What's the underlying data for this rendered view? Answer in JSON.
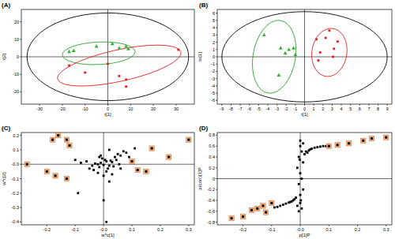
{
  "chart_data": [
    {
      "type": "scatter",
      "title": "(A)",
      "x_label": "t[1]",
      "y_label": "t[2]",
      "xlim": [
        -38,
        38
      ],
      "ylim": [
        -27,
        27
      ],
      "xticks": [
        -30,
        -20,
        -10,
        0,
        10,
        20,
        30
      ],
      "yticks": [
        -20,
        -10,
        0,
        10,
        20
      ],
      "ellipses": [
        {
          "center": [
            0,
            0
          ],
          "a1": [
            35.5,
            0
          ],
          "a2": [
            0,
            25
          ],
          "color": "#000000"
        },
        {
          "center": [
            -4,
            2
          ],
          "a1": [
            16,
            1
          ],
          "a2": [
            -0.4,
            6.4
          ],
          "color": "#2ca02c"
        },
        {
          "center": [
            5,
            -5
          ],
          "a1": [
            27,
            8
          ],
          "a2": [
            -2.5,
            8.5
          ],
          "color": "#e02020"
        }
      ],
      "series": [
        {
          "color": "#33b233",
          "marker": "triangle",
          "x": [
            -17,
            -15,
            -5,
            2,
            5,
            8,
            9
          ],
          "values": [
            3,
            3.5,
            6,
            7.5,
            5,
            6,
            4.5
          ]
        },
        {
          "color": "#e02020",
          "marker": "square",
          "x": [
            -17,
            -10,
            0,
            5,
            8,
            8,
            31
          ],
          "values": [
            -5,
            -9,
            -4,
            -11,
            -13,
            -17,
            4
          ]
        }
      ]
    },
    {
      "type": "scatter",
      "title": "(B)",
      "x_label": "t[1]",
      "y_label": "to[1]",
      "xlim": [
        -9.5,
        9.5
      ],
      "ylim": [
        -6.5,
        6.5
      ],
      "xticks": [
        -9,
        -8,
        -7,
        -6,
        -5,
        -4,
        -3,
        -2,
        -1,
        0,
        1,
        2,
        3,
        4,
        5,
        6,
        7,
        8,
        9
      ],
      "yticks": [
        -6,
        -5,
        -4,
        -3,
        -2,
        -1,
        0,
        1,
        2,
        3,
        4,
        5,
        6
      ],
      "ellipses": [
        {
          "center": [
            0,
            0
          ],
          "a1": [
            9,
            0
          ],
          "a2": [
            0,
            6.2
          ],
          "color": "#000000"
        },
        {
          "center": [
            -3.3,
            0
          ],
          "a1": [
            0.6,
            5
          ],
          "a2": [
            2.3,
            -0.3
          ],
          "color": "#2ca02c"
        },
        {
          "center": [
            2.7,
            0.6
          ],
          "a1": [
            0.3,
            3.3
          ],
          "a2": [
            1.9,
            -0.2
          ],
          "color": "#e02020"
        }
      ],
      "series": [
        {
          "color": "#33b233",
          "marker": "triangle",
          "x": [
            -4.4,
            -2.6,
            -1.7,
            -1.2,
            -2.1,
            -1,
            -2.8
          ],
          "values": [
            3,
            1.2,
            1,
            1.2,
            0.5,
            0.3,
            -2.5
          ]
        },
        {
          "color": "#e02020",
          "marker": "square",
          "x": [
            1.3,
            2.7,
            2.3,
            3.6,
            3.2,
            1.7,
            1.5,
            3.1
          ],
          "values": [
            2.4,
            3.6,
            2.6,
            2.1,
            1.1,
            0.6,
            -0.5,
            0
          ]
        }
      ]
    },
    {
      "type": "scatter",
      "title": "(C)",
      "x_label": "w*c[1]",
      "y_label": "w*c[2]",
      "xlim": [
        -0.29,
        0.32
      ],
      "ylim": [
        -0.42,
        0.22
      ],
      "xticks": [
        -0.2,
        -0.1,
        {
          "value": 0,
          "label": "-0.0"
        },
        0.1,
        0.2,
        0.3
      ],
      "yticks": [
        -0.4,
        -0.3,
        -0.2,
        -0.1,
        {
          "value": 0,
          "label": "-0.0"
        },
        0.1,
        0.2
      ],
      "series": [
        {
          "color": "#000000",
          "marker": "square",
          "x": [
            -0.02,
            -0.01,
            0,
            0.01,
            0.02,
            -0.03,
            0.03,
            -0.015,
            0.005,
            0.015,
            -0.005,
            0.025,
            -0.04,
            0.04,
            0.05,
            0.06,
            0.07,
            -0.06,
            -0.05,
            0.08,
            0.01,
            -0.02,
            0.0,
            0.03,
            -0.01,
            0.02,
            0.045,
            -0.035,
            0.055,
            0.09,
            0.02,
            -0.08,
            -0.1,
            0.0,
            0.01,
            -0.09,
            0.11,
            -0.015,
            0.035,
            0.06
          ],
          "values": [
            0.0,
            0.01,
            -0.005,
            0.02,
            -0.01,
            0.005,
            0.015,
            -0.02,
            0.03,
            -0.03,
            0.04,
            0.025,
            -0.01,
            0.05,
            0.07,
            0.06,
            0.09,
            0.02,
            -0.03,
            0.08,
            -0.05,
            -0.06,
            -0.08,
            -0.07,
            0.06,
            0.1,
            0.03,
            -0.04,
            0.0,
            0.05,
            -0.12,
            0.01,
            0.03,
            -0.25,
            -0.4,
            -0.2,
            0.11,
            0.05,
            -0.015,
            -0.03
          ]
        },
        {
          "color": "#000000",
          "marker": "highlighted",
          "x": [
            -0.27,
            -0.18,
            -0.16,
            -0.13,
            -0.12,
            -0.2,
            -0.17,
            -0.13,
            0.1,
            0.12,
            0.15,
            0.23,
            0.3,
            0.17
          ],
          "values": [
            0.0,
            0.17,
            0.2,
            0.17,
            0.13,
            -0.05,
            -0.08,
            -0.1,
            0.02,
            -0.04,
            -0.05,
            0.05,
            0.17,
            0.11
          ]
        }
      ]
    },
    {
      "type": "scatter",
      "title": "(D)",
      "x_label": "p[1]P",
      "y_label": "p(corr)[1]P",
      "xlim": [
        -0.29,
        0.32
      ],
      "ylim": [
        -0.85,
        0.85
      ],
      "xticks": [
        -0.2,
        -0.1,
        {
          "value": 0,
          "label": "-0.0"
        },
        0.1,
        0.2,
        0.3
      ],
      "yticks": [
        -0.8,
        -0.6,
        -0.4,
        -0.2,
        0,
        0.2,
        0.4,
        0.6,
        0.8
      ],
      "series": [
        {
          "color": "#000000",
          "marker": "square",
          "x": [
            0,
            0.005,
            -0.005,
            0.01,
            -0.01,
            0,
            0.005,
            -0.005,
            0.01,
            0.0,
            0.015,
            0.02,
            0.03,
            0.04,
            0.05,
            0.06,
            0.08,
            0.09,
            -0.015,
            -0.02,
            -0.03,
            -0.04,
            -0.05,
            -0.06,
            -0.07,
            -0.08,
            0.0,
            0.005,
            -0.005,
            0.0,
            0.01,
            -0.01,
            0.002,
            -0.002,
            0.025,
            0.035,
            -0.025,
            -0.035,
            0.07,
            -0.09
          ],
          "values": [
            0.6,
            0.5,
            0.4,
            0.3,
            0.2,
            0.1,
            0,
            -0.1,
            -0.2,
            -0.3,
            0.45,
            0.5,
            0.52,
            0.55,
            0.57,
            0.58,
            0.6,
            0.6,
            -0.35,
            -0.38,
            -0.42,
            -0.44,
            -0.46,
            -0.48,
            -0.5,
            -0.52,
            -0.45,
            -0.55,
            -0.6,
            0.7,
            0.65,
            -0.5,
            -0.4,
            0.35,
            0.48,
            0.54,
            -0.4,
            -0.43,
            0.59,
            -0.53
          ]
        },
        {
          "color": "#000000",
          "marker": "highlighted",
          "x": [
            0.3,
            0.25,
            0.22,
            0.17,
            0.13,
            0.1,
            -0.1,
            -0.13,
            -0.15,
            -0.17,
            -0.2,
            -0.24,
            -0.12
          ],
          "values": [
            0.76,
            0.74,
            0.7,
            0.65,
            0.62,
            0.6,
            -0.45,
            -0.5,
            -0.55,
            -0.58,
            -0.7,
            -0.73,
            -0.62
          ]
        }
      ]
    }
  ]
}
